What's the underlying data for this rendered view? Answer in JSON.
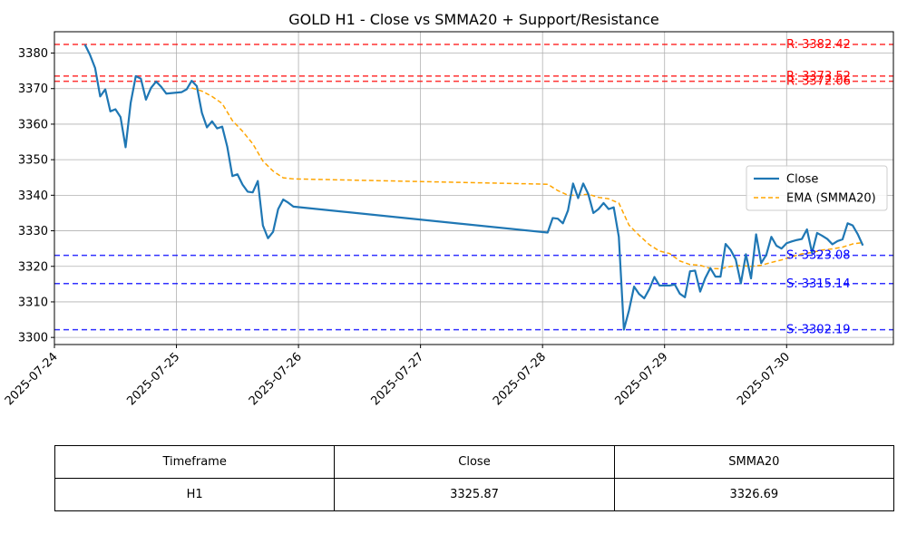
{
  "chart_data": {
    "type": "line",
    "title": "GOLD H1 - Close vs SMMA20 + Support/Resistance",
    "xlabel": "",
    "ylabel": "",
    "ylim": [
      3298,
      3386
    ],
    "x_range": [
      "2025-07-24 00:00",
      "2025-07-30 21:00"
    ],
    "x_ticks": [
      "2025-07-24",
      "2025-07-25",
      "2025-07-26",
      "2025-07-27",
      "2025-07-28",
      "2025-07-29",
      "2025-07-30"
    ],
    "y_ticks": [
      3300,
      3310,
      3320,
      3330,
      3340,
      3350,
      3360,
      3370,
      3380
    ],
    "grid": true,
    "legend_position": "right",
    "series": [
      {
        "name": "Close",
        "color": "#1f77b4",
        "style": "solid",
        "points": [
          [
            "2025-07-24 06:00",
            3382.4
          ],
          [
            "2025-07-24 07:00",
            3379.5
          ],
          [
            "2025-07-24 08:00",
            3375.8
          ],
          [
            "2025-07-24 09:00",
            3367.8
          ],
          [
            "2025-07-24 10:00",
            3369.8
          ],
          [
            "2025-07-24 11:00",
            3363.6
          ],
          [
            "2025-07-24 12:00",
            3364.2
          ],
          [
            "2025-07-24 13:00",
            3362.0
          ],
          [
            "2025-07-24 14:00",
            3353.5
          ],
          [
            "2025-07-24 15:00",
            3366.0
          ],
          [
            "2025-07-24 16:00",
            3373.5
          ],
          [
            "2025-07-24 17:00",
            3372.8
          ],
          [
            "2025-07-24 18:00",
            3366.9
          ],
          [
            "2025-07-24 19:00",
            3370.2
          ],
          [
            "2025-07-24 20:00",
            3372.0
          ],
          [
            "2025-07-24 21:00",
            3370.5
          ],
          [
            "2025-07-24 22:00",
            3368.6
          ],
          [
            "2025-07-25 01:00",
            3369.0
          ],
          [
            "2025-07-25 02:00",
            3369.8
          ],
          [
            "2025-07-25 03:00",
            3372.2
          ],
          [
            "2025-07-25 04:00",
            3370.7
          ],
          [
            "2025-07-25 05:00",
            3363.2
          ],
          [
            "2025-07-25 06:00",
            3359.1
          ],
          [
            "2025-07-25 07:00",
            3360.8
          ],
          [
            "2025-07-25 08:00",
            3358.8
          ],
          [
            "2025-07-25 09:00",
            3359.3
          ],
          [
            "2025-07-25 10:00",
            3353.6
          ],
          [
            "2025-07-25 11:00",
            3345.4
          ],
          [
            "2025-07-25 12:00",
            3345.9
          ],
          [
            "2025-07-25 13:00",
            3343.0
          ],
          [
            "2025-07-25 14:00",
            3341.0
          ],
          [
            "2025-07-25 15:00",
            3340.8
          ],
          [
            "2025-07-25 16:00",
            3344.0
          ],
          [
            "2025-07-25 17:00",
            3331.5
          ],
          [
            "2025-07-25 18:00",
            3327.9
          ],
          [
            "2025-07-25 19:00",
            3329.7
          ],
          [
            "2025-07-25 20:00",
            3336.1
          ],
          [
            "2025-07-25 21:00",
            3338.8
          ],
          [
            "2025-07-25 22:00",
            3337.9
          ],
          [
            "2025-07-25 23:00",
            3336.8
          ],
          [
            "2025-07-28 01:00",
            3329.5
          ],
          [
            "2025-07-28 02:00",
            3333.6
          ],
          [
            "2025-07-28 03:00",
            3333.4
          ],
          [
            "2025-07-28 04:00",
            3332.1
          ],
          [
            "2025-07-28 05:00",
            3335.7
          ],
          [
            "2025-07-28 06:00",
            3343.3
          ],
          [
            "2025-07-28 07:00",
            3339.2
          ],
          [
            "2025-07-28 08:00",
            3343.3
          ],
          [
            "2025-07-28 09:00",
            3340.3
          ],
          [
            "2025-07-28 10:00",
            3335.0
          ],
          [
            "2025-07-28 11:00",
            3336.1
          ],
          [
            "2025-07-28 12:00",
            3337.8
          ],
          [
            "2025-07-28 13:00",
            3336.1
          ],
          [
            "2025-07-28 14:00",
            3336.6
          ],
          [
            "2025-07-28 15:00",
            3328.3
          ],
          [
            "2025-07-28 16:00",
            3302.2
          ],
          [
            "2025-07-28 17:00",
            3307.6
          ],
          [
            "2025-07-28 18:00",
            3314.3
          ],
          [
            "2025-07-28 19:00",
            3312.2
          ],
          [
            "2025-07-28 20:00",
            3311.0
          ],
          [
            "2025-07-28 21:00",
            3313.6
          ],
          [
            "2025-07-28 22:00",
            3317.0
          ],
          [
            "2025-07-28 23:00",
            3314.6
          ],
          [
            "2025-07-29 01:00",
            3314.6
          ],
          [
            "2025-07-29 02:00",
            3314.9
          ],
          [
            "2025-07-29 03:00",
            3312.3
          ],
          [
            "2025-07-29 04:00",
            3311.3
          ],
          [
            "2025-07-29 05:00",
            3318.6
          ],
          [
            "2025-07-29 06:00",
            3318.8
          ],
          [
            "2025-07-29 07:00",
            3312.9
          ],
          [
            "2025-07-29 08:00",
            3316.7
          ],
          [
            "2025-07-29 09:00",
            3319.5
          ],
          [
            "2025-07-29 10:00",
            3317.1
          ],
          [
            "2025-07-29 11:00",
            3317.1
          ],
          [
            "2025-07-29 12:00",
            3326.3
          ],
          [
            "2025-07-29 13:00",
            3324.6
          ],
          [
            "2025-07-29 14:00",
            3321.9
          ],
          [
            "2025-07-29 15:00",
            3315.2
          ],
          [
            "2025-07-29 16:00",
            3323.4
          ],
          [
            "2025-07-29 17:00",
            3316.6
          ],
          [
            "2025-07-29 18:00",
            3329.0
          ],
          [
            "2025-07-29 19:00",
            3320.9
          ],
          [
            "2025-07-29 20:00",
            3323.2
          ],
          [
            "2025-07-29 21:00",
            3328.3
          ],
          [
            "2025-07-29 22:00",
            3325.8
          ],
          [
            "2025-07-29 23:00",
            3325.0
          ],
          [
            "2025-07-30 00:00",
            3326.5
          ],
          [
            "2025-07-30 01:00",
            3327.0
          ],
          [
            "2025-07-30 02:00",
            3327.4
          ],
          [
            "2025-07-30 03:00",
            3327.7
          ],
          [
            "2025-07-30 04:00",
            3330.4
          ],
          [
            "2025-07-30 05:00",
            3323.8
          ],
          [
            "2025-07-30 06:00",
            3329.4
          ],
          [
            "2025-07-30 07:00",
            3328.6
          ],
          [
            "2025-07-30 08:00",
            3327.7
          ],
          [
            "2025-07-30 09:00",
            3326.2
          ],
          [
            "2025-07-30 10:00",
            3327.1
          ],
          [
            "2025-07-30 11:00",
            3327.6
          ],
          [
            "2025-07-30 12:00",
            3332.1
          ],
          [
            "2025-07-30 13:00",
            3331.5
          ],
          [
            "2025-07-30 14:00",
            3329.0
          ],
          [
            "2025-07-30 15:00",
            3325.87
          ]
        ]
      },
      {
        "name": "EMA (SMMA20)",
        "color": "#ffa500",
        "style": "dashed",
        "points": [
          [
            "2025-07-25 03:00",
            3370.2
          ],
          [
            "2025-07-25 05:00",
            3369.3
          ],
          [
            "2025-07-25 07:00",
            3367.8
          ],
          [
            "2025-07-25 09:00",
            3365.8
          ],
          [
            "2025-07-25 11:00",
            3361.0
          ],
          [
            "2025-07-25 13:00",
            3358.0
          ],
          [
            "2025-07-25 15:00",
            3354.5
          ],
          [
            "2025-07-25 17:00",
            3349.6
          ],
          [
            "2025-07-25 19:00",
            3346.8
          ],
          [
            "2025-07-25 21:00",
            3344.9
          ],
          [
            "2025-07-25 23:00",
            3344.6
          ],
          [
            "2025-07-28 01:00",
            3343.1
          ],
          [
            "2025-07-28 03:00",
            3341.3
          ],
          [
            "2025-07-28 05:00",
            3340.0
          ],
          [
            "2025-07-28 07:00",
            3340.0
          ],
          [
            "2025-07-28 09:00",
            3340.3
          ],
          [
            "2025-07-28 11:00",
            3339.4
          ],
          [
            "2025-07-28 13:00",
            3339.0
          ],
          [
            "2025-07-28 15:00",
            3337.8
          ],
          [
            "2025-07-28 17:00",
            3331.6
          ],
          [
            "2025-07-28 19:00",
            3328.7
          ],
          [
            "2025-07-28 21:00",
            3326.1
          ],
          [
            "2025-07-28 23:00",
            3324.3
          ],
          [
            "2025-07-29 01:00",
            3323.6
          ],
          [
            "2025-07-29 03:00",
            3321.5
          ],
          [
            "2025-07-29 05:00",
            3320.5
          ],
          [
            "2025-07-29 07:00",
            3320.3
          ],
          [
            "2025-07-29 09:00",
            3319.4
          ],
          [
            "2025-07-29 11:00",
            3319.3
          ],
          [
            "2025-07-29 13:00",
            3320.0
          ],
          [
            "2025-07-29 15:00",
            3320.2
          ],
          [
            "2025-07-29 17:00",
            3320.0
          ],
          [
            "2025-07-29 19:00",
            3320.3
          ],
          [
            "2025-07-29 21:00",
            3321.1
          ],
          [
            "2025-07-29 23:00",
            3321.8
          ],
          [
            "2025-07-30 01:00",
            3322.7
          ],
          [
            "2025-07-30 03:00",
            3323.5
          ],
          [
            "2025-07-30 05:00",
            3323.9
          ],
          [
            "2025-07-30 07:00",
            3324.6
          ],
          [
            "2025-07-30 09:00",
            3324.9
          ],
          [
            "2025-07-30 11:00",
            3325.4
          ],
          [
            "2025-07-30 13:00",
            3326.3
          ],
          [
            "2025-07-30 15:00",
            3326.69
          ]
        ]
      }
    ],
    "resistance_levels": [
      {
        "value": 3382.42,
        "label": "R: 3382.42"
      },
      {
        "value": 3373.52,
        "label": "R: 3373.52"
      },
      {
        "value": 3372.06,
        "label": "R: 3372.06"
      }
    ],
    "support_levels": [
      {
        "value": 3323.08,
        "label": "S: 3323.08"
      },
      {
        "value": 3315.14,
        "label": "S: 3315.14"
      },
      {
        "value": 3302.19,
        "label": "S: 3302.19"
      }
    ],
    "resistance_color": "#ff0000",
    "support_color": "#0000ff"
  },
  "table": {
    "headers": [
      "Timeframe",
      "Close",
      "SMMA20"
    ],
    "rows": [
      [
        "H1",
        "3325.87",
        "3326.69"
      ]
    ]
  }
}
